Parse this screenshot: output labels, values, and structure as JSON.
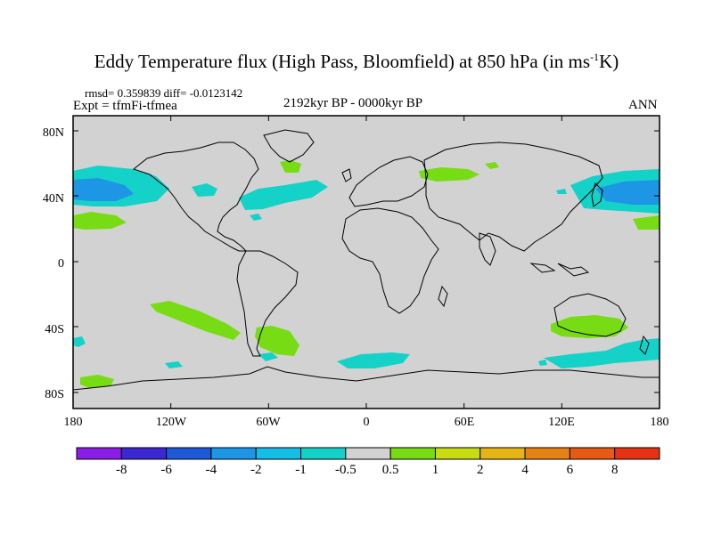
{
  "title": {
    "main": "Eddy Temperature flux (High Pass, Bloomfield) at 850 hPa (in ms",
    "superscript": "-1",
    "suffix": "K)"
  },
  "stats": "rmsd= 0.359839 diff= -0.0123142",
  "experiment": "Expt = tfmFi-tfmea",
  "period": "2192kyr BP - 0000kyr BP",
  "season": "ANN",
  "lat_ticks": [
    "80N",
    "40N",
    "0",
    "40S",
    "80S"
  ],
  "lon_ticks": [
    "180",
    "120W",
    "60W",
    "0",
    "60E",
    "120E",
    "180"
  ],
  "colorbar": {
    "levels": [
      "-8",
      "-6",
      "-4",
      "-2",
      "-1",
      "-0.5",
      "0.5",
      "1",
      "2",
      "4",
      "6",
      "8"
    ],
    "colors": [
      "#8a1ee6",
      "#3c28d2",
      "#1e5ad7",
      "#1e96e6",
      "#14bee6",
      "#14d2c8",
      "#d2d2d2",
      "#78dc14",
      "#c8dc14",
      "#e6b414",
      "#e68214",
      "#e65a14",
      "#e63214"
    ]
  },
  "colors": {
    "land_ocean_background": "#d2d2d2",
    "positive_light": "#78dc14",
    "negative_light": "#14d2c8",
    "negative_medium": "#14bee6",
    "negative_strong": "#1e96e6"
  }
}
